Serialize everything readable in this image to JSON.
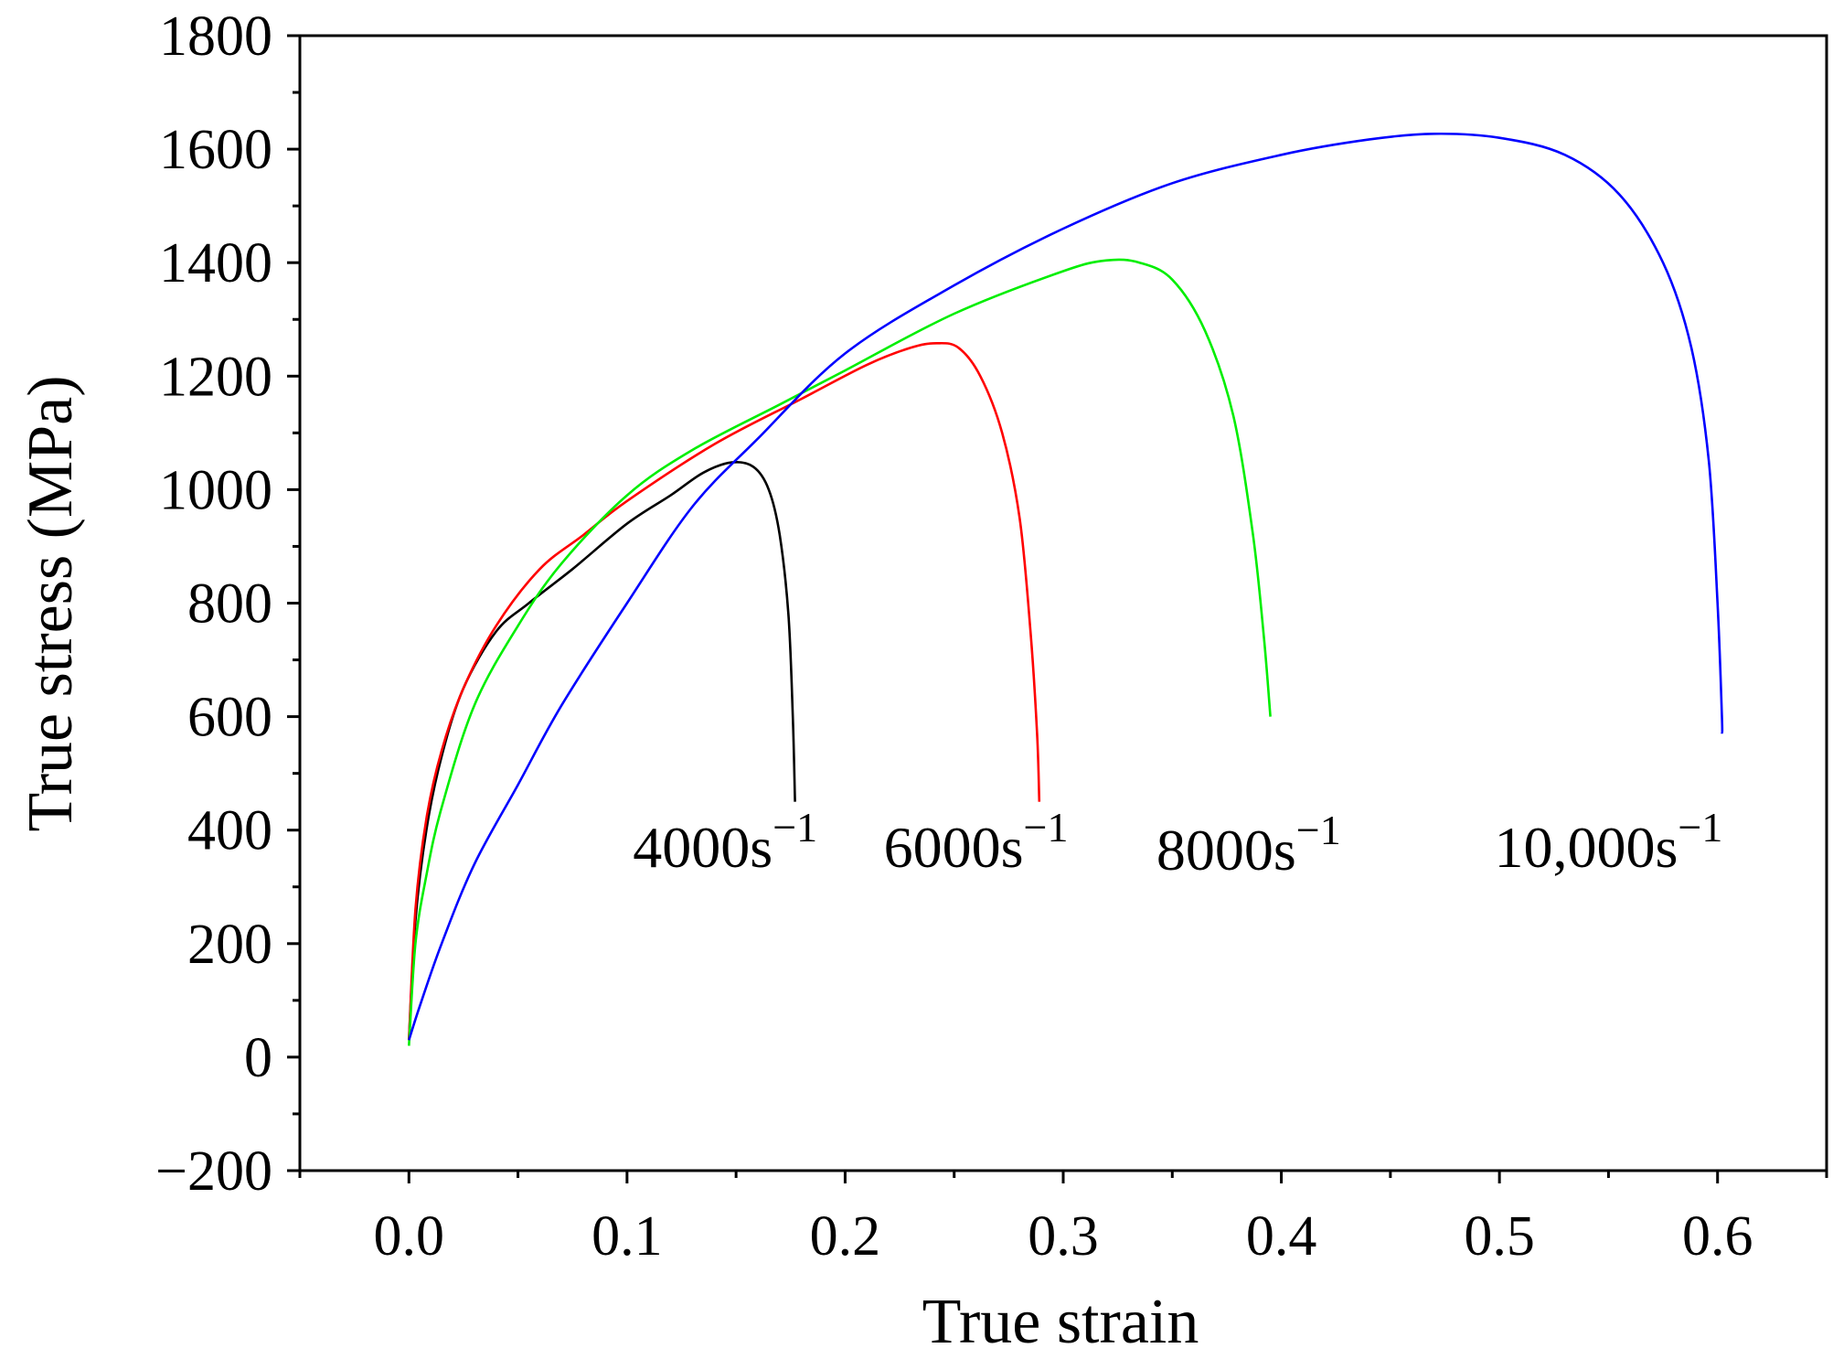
{
  "chart_data": {
    "type": "line",
    "title": "",
    "xlabel": "True strain",
    "ylabel": "True stress (MPa)",
    "xlim": [
      -0.05,
      0.65
    ],
    "ylim": [
      -200,
      1800
    ],
    "x_ticks": [
      0.0,
      0.1,
      0.2,
      0.3,
      0.4,
      0.5,
      0.6
    ],
    "x_tick_labels": [
      "0.0",
      "0.1",
      "0.2",
      "0.3",
      "0.4",
      "0.5",
      "0.6"
    ],
    "y_ticks": [
      -200,
      0,
      200,
      400,
      600,
      800,
      1000,
      1200,
      1400,
      1600,
      1800
    ],
    "y_tick_labels": [
      "−200",
      "0",
      "200",
      "400",
      "600",
      "800",
      "1000",
      "1200",
      "1400",
      "1600",
      "1800"
    ],
    "grid": false,
    "series": [
      {
        "name": "4000s⁻¹",
        "label_text": "4000s",
        "label_sup": "−1",
        "color": "#000000",
        "points": [
          [
            0.0,
            30
          ],
          [
            0.003,
            240
          ],
          [
            0.008,
            400
          ],
          [
            0.015,
            530
          ],
          [
            0.025,
            650
          ],
          [
            0.04,
            750
          ],
          [
            0.055,
            800
          ],
          [
            0.075,
            860
          ],
          [
            0.1,
            940
          ],
          [
            0.12,
            990
          ],
          [
            0.135,
            1030
          ],
          [
            0.148,
            1048
          ],
          [
            0.158,
            1040
          ],
          [
            0.165,
            1000
          ],
          [
            0.17,
            920
          ],
          [
            0.174,
            780
          ],
          [
            0.176,
            600
          ],
          [
            0.177,
            450
          ]
        ]
      },
      {
        "name": "6000s⁻¹",
        "label_text": "6000s",
        "label_sup": "−1",
        "color": "#ff0000",
        "points": [
          [
            0.0,
            30
          ],
          [
            0.003,
            260
          ],
          [
            0.008,
            420
          ],
          [
            0.015,
            540
          ],
          [
            0.025,
            650
          ],
          [
            0.04,
            760
          ],
          [
            0.06,
            860
          ],
          [
            0.08,
            920
          ],
          [
            0.1,
            980
          ],
          [
            0.14,
            1080
          ],
          [
            0.18,
            1160
          ],
          [
            0.21,
            1220
          ],
          [
            0.23,
            1250
          ],
          [
            0.242,
            1258
          ],
          [
            0.252,
            1250
          ],
          [
            0.262,
            1200
          ],
          [
            0.272,
            1100
          ],
          [
            0.28,
            950
          ],
          [
            0.285,
            750
          ],
          [
            0.288,
            570
          ],
          [
            0.289,
            450
          ]
        ]
      },
      {
        "name": "8000s⁻¹",
        "label_text": "8000s",
        "label_sup": "−1",
        "color": "#00ee00",
        "points": [
          [
            0.0,
            20
          ],
          [
            0.003,
            200
          ],
          [
            0.008,
            320
          ],
          [
            0.015,
            440
          ],
          [
            0.03,
            620
          ],
          [
            0.05,
            760
          ],
          [
            0.07,
            870
          ],
          [
            0.1,
            990
          ],
          [
            0.13,
            1070
          ],
          [
            0.17,
            1150
          ],
          [
            0.2,
            1210
          ],
          [
            0.25,
            1310
          ],
          [
            0.3,
            1385
          ],
          [
            0.32,
            1404
          ],
          [
            0.335,
            1400
          ],
          [
            0.35,
            1370
          ],
          [
            0.365,
            1280
          ],
          [
            0.378,
            1130
          ],
          [
            0.387,
            920
          ],
          [
            0.392,
            740
          ],
          [
            0.395,
            600
          ]
        ]
      },
      {
        "name": "10,000s⁻¹",
        "label_text": "10,000s",
        "label_sup": "−1",
        "color": "#0000ff",
        "points": [
          [
            0.0,
            30
          ],
          [
            0.005,
            90
          ],
          [
            0.015,
            200
          ],
          [
            0.03,
            340
          ],
          [
            0.05,
            480
          ],
          [
            0.07,
            620
          ],
          [
            0.1,
            800
          ],
          [
            0.13,
            970
          ],
          [
            0.16,
            1090
          ],
          [
            0.2,
            1240
          ],
          [
            0.25,
            1360
          ],
          [
            0.3,
            1460
          ],
          [
            0.35,
            1540
          ],
          [
            0.4,
            1590
          ],
          [
            0.44,
            1617
          ],
          [
            0.47,
            1627
          ],
          [
            0.5,
            1620
          ],
          [
            0.53,
            1590
          ],
          [
            0.555,
            1520
          ],
          [
            0.575,
            1400
          ],
          [
            0.588,
            1250
          ],
          [
            0.596,
            1050
          ],
          [
            0.6,
            800
          ],
          [
            0.602,
            600
          ],
          [
            0.602,
            570
          ]
        ]
      }
    ]
  }
}
